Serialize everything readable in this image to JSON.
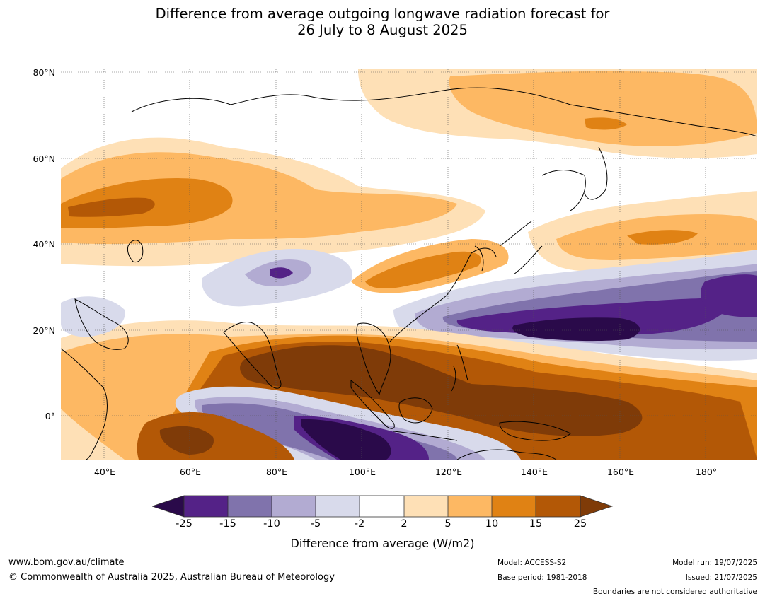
{
  "title": {
    "line1": "Difference from average outgoing longwave radiation forecast for",
    "line2": "26 July to 8 August 2025"
  },
  "map": {
    "lat_labels": [
      "80°N",
      "60°N",
      "40°N",
      "20°N",
      "0°"
    ],
    "lon_labels": [
      "40°E",
      "60°E",
      "80°E",
      "100°E",
      "120°E",
      "140°E",
      "160°E",
      "180°"
    ],
    "lat_values": [
      80,
      60,
      40,
      20,
      0
    ],
    "lon_values": [
      40,
      60,
      80,
      100,
      120,
      140,
      160,
      180
    ],
    "extent": {
      "lon_min": 30,
      "lon_max": 192,
      "lat_min": -10,
      "lat_max": 81
    }
  },
  "colorbar": {
    "title": "Difference from average (W/m2)",
    "tick_labels": [
      "-25",
      "-15",
      "-10",
      "-5",
      "-2",
      "2",
      "5",
      "10",
      "15",
      "25"
    ],
    "colors": {
      "lt_neg25": "#2a0a4a",
      "neg25_neg15": "#542287",
      "neg15_neg10": "#8073ac",
      "neg10_neg5": "#b2abd2",
      "neg5_neg2": "#d8daeb",
      "neg2_2": "#ffffff",
      "2_5": "#fee0b6",
      "5_10": "#fdb863",
      "10_15": "#e08214",
      "15_25": "#b35806",
      "gt_25": "#7f3b08"
    }
  },
  "footer": {
    "url": "www.bom.gov.au/climate",
    "copyright": "© Commonwealth of Australia 2025, Australian Bureau of Meteorology",
    "model": "Model: ACCESS-S2",
    "base_period": "Base period: 1981-2018",
    "model_run": "Model run: 19/07/2025",
    "issued": "Issued: 21/07/2025",
    "disclaimer": "Boundaries are not considered authoritative"
  }
}
